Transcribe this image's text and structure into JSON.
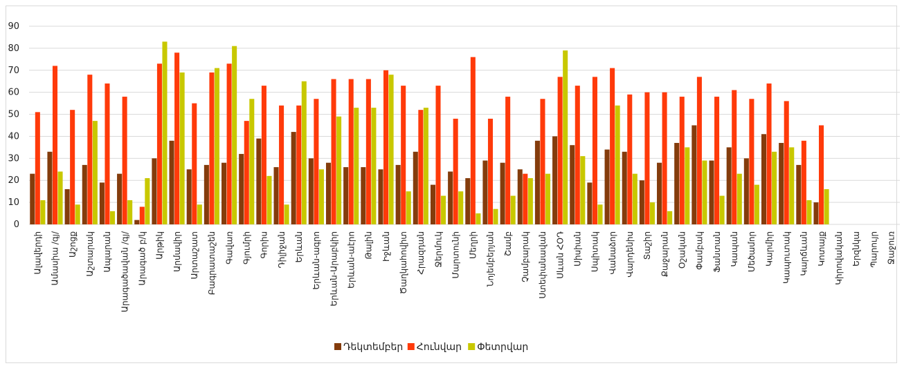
{
  "chart_data": {
    "type": "bar",
    "ylim": [
      0,
      90
    ],
    "yticks": [
      0,
      10,
      20,
      30,
      40,
      50,
      60,
      70,
      80,
      90
    ],
    "grid": true,
    "legend_position": "bottom",
    "categories": [
      "Ալավերդի",
      "Ամասիա /գյ/",
      "Աշոցք",
      "Աշտարակ",
      "Ապարան",
      "Արագածավան /գյ/",
      "Արագած բ/կ",
      "Արթիկ",
      "Արմավիր",
      "Արտաշատ",
      "Բագրատաշեն",
      "Գավառ",
      "Գյումրի",
      "Գորիս",
      "Դիլիջան",
      "Երևան",
      "Երևան-ագրո",
      "Երևան-Արաբկիր",
      "Երևան-աէրո",
      "Թալին",
      "Իջևան",
      "Ծաղկահովիտ",
      "Հրազդան",
      "Ջերմուկ",
      "Մարտունի",
      "Մեղրի",
      "Նոյեմբերյան",
      "Շամբ",
      "Չամբարակ",
      "Ստեփանավան",
      "Սևան ՀՕԴ",
      "Սիսիան",
      "Սպիտակ",
      "Վանաձոր",
      "Վարդենիս",
      "Տաշիր",
      "Քաջարան",
      "Օշական",
      "Փամբակ",
      "Ֆանտան",
      "Կապան",
      "Մեծամոր",
      "Կարմիր",
      "Կապուտակ",
      "Կարճևան",
      "Կոտայք",
      "Կիրովական",
      "Երզնկա",
      "Պարույր",
      "Ջաջուռ"
    ],
    "series": [
      {
        "name": "Դեկտեմբեր",
        "color": "#843c0c",
        "values": [
          23,
          33,
          16,
          27,
          19,
          23,
          2,
          30,
          38,
          25,
          27,
          28,
          32,
          39,
          26,
          42,
          30,
          28,
          26,
          26,
          25,
          27,
          33,
          18,
          24,
          21,
          29,
          28,
          25,
          38,
          40,
          36,
          19,
          34,
          33,
          20,
          28,
          37,
          45,
          29,
          35,
          30,
          41,
          37,
          27,
          10,
          0,
          0,
          0,
          0
        ]
      },
      {
        "name": "Հունվար",
        "color": "#ff3a0a",
        "values": [
          51,
          72,
          52,
          68,
          64,
          58,
          8,
          73,
          78,
          55,
          69,
          73,
          47,
          63,
          54,
          54,
          57,
          66,
          66,
          66,
          70,
          63,
          52,
          63,
          48,
          76,
          48,
          58,
          23,
          57,
          67,
          63,
          67,
          71,
          59,
          60,
          60,
          58,
          67,
          58,
          61,
          57,
          64,
          56,
          38,
          45,
          0,
          0,
          0,
          0
        ]
      },
      {
        "name": "Փետրվար",
        "color": "#c8c800",
        "values": [
          11,
          24,
          9,
          47,
          6,
          11,
          21,
          83,
          69,
          9,
          71,
          81,
          57,
          22,
          9,
          65,
          25,
          49,
          53,
          53,
          68,
          15,
          53,
          13,
          15,
          5,
          7,
          13,
          21,
          23,
          79,
          31,
          9,
          54,
          23,
          10,
          6,
          35,
          29,
          13,
          23,
          18,
          33,
          35,
          11,
          16,
          0,
          0,
          0,
          0
        ]
      }
    ]
  },
  "legend": {
    "items": [
      {
        "label": "Դեկտեմբեր",
        "color": "#843c0c"
      },
      {
        "label": "Հունվար",
        "color": "#ff3a0a"
      },
      {
        "label": "Փետրվար",
        "color": "#c8c800"
      }
    ]
  }
}
